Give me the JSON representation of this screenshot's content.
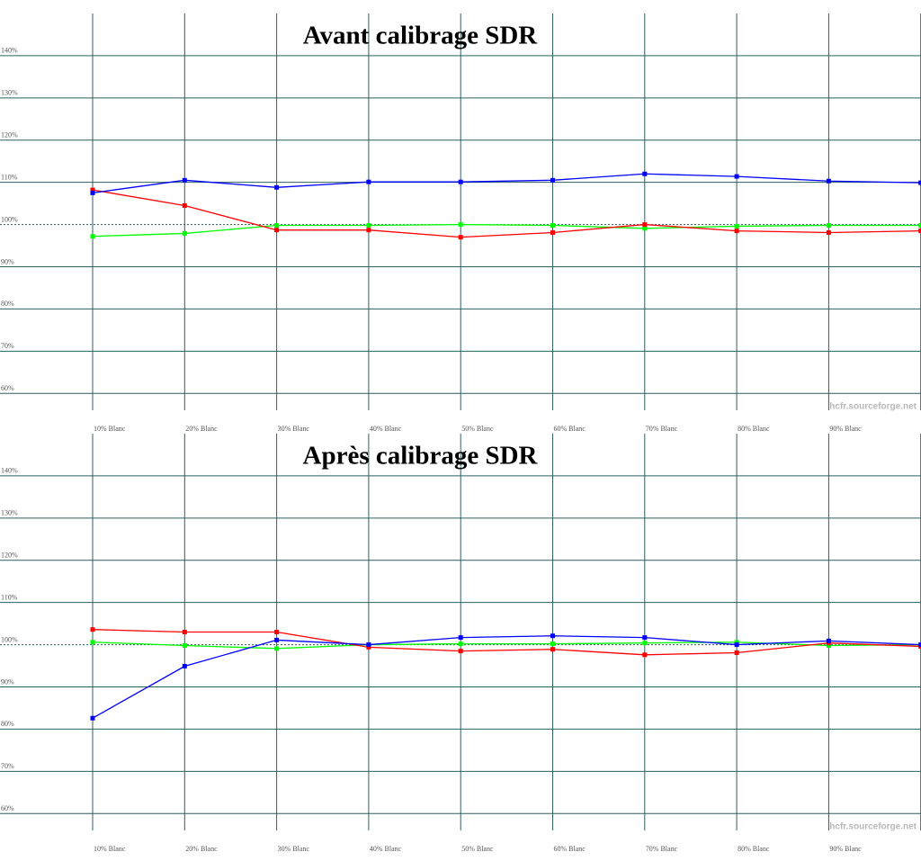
{
  "chart_data": [
    {
      "type": "line",
      "title": "Avant calibrage SDR",
      "watermark": "hcfr.sourceforge.net",
      "categories": [
        "10% Blanc",
        "20% Blanc",
        "30% Blanc",
        "40% Blanc",
        "50% Blanc",
        "60% Blanc",
        "70% Blanc",
        "80% Blanc",
        "90% Blanc",
        null
      ],
      "series": [
        {
          "color": "#00ff00",
          "values": [
            97.2,
            97.9,
            99.8,
            99.8,
            100,
            99.8,
            99.1,
            99.6,
            99.8,
            99.8
          ]
        },
        {
          "color": "#ff0000",
          "values": [
            108.2,
            104.5,
            98.7,
            98.7,
            97.0,
            98.1,
            100,
            98.5,
            98.1,
            98.5
          ]
        },
        {
          "color": "#0000ff",
          "values": [
            107.5,
            110.5,
            108.8,
            110.1,
            110.1,
            110.5,
            112.0,
            111.4,
            110.3,
            109.9
          ]
        }
      ],
      "ylim": [
        56,
        150
      ],
      "yticks": [
        {
          "value": 60,
          "label": "60%"
        },
        {
          "value": 70,
          "label": "70%"
        },
        {
          "value": 80,
          "label": "80%"
        },
        {
          "value": 90,
          "label": "90%"
        },
        {
          "value": 100,
          "label": "100%"
        },
        {
          "value": 110,
          "label": "110%"
        },
        {
          "value": 120,
          "label": "120%"
        },
        {
          "value": 130,
          "label": "130%"
        },
        {
          "value": 140,
          "label": "140%"
        }
      ],
      "reference_line": 100,
      "grid": true
    },
    {
      "type": "line",
      "title": "Après calibrage SDR",
      "watermark": "hcfr.sourceforge.net",
      "categories": [
        "10% Blanc",
        "20% Blanc",
        "30% Blanc",
        "40% Blanc",
        "50% Blanc",
        "60% Blanc",
        "70% Blanc",
        "80% Blanc",
        "90% Blanc",
        null
      ],
      "series": [
        {
          "color": "#00ff00",
          "values": [
            100.6,
            99.8,
            99.1,
            100,
            100.2,
            100.2,
            100.4,
            100.6,
            99.8,
            100
          ]
        },
        {
          "color": "#ff0000",
          "values": [
            103.6,
            103.0,
            103.0,
            99.4,
            98.5,
            98.9,
            97.6,
            98.1,
            100.4,
            99.6
          ]
        },
        {
          "color": "#0000ff",
          "values": [
            82.6,
            94.9,
            101.1,
            100,
            101.7,
            102.1,
            101.7,
            100,
            100.9,
            100
          ]
        }
      ],
      "ylim": [
        56,
        150
      ],
      "yticks": [
        {
          "value": 60,
          "label": "60%"
        },
        {
          "value": 70,
          "label": "70%"
        },
        {
          "value": 80,
          "label": "80%"
        },
        {
          "value": 90,
          "label": "90%"
        },
        {
          "value": 100,
          "label": "100%"
        },
        {
          "value": 110,
          "label": "110%"
        },
        {
          "value": 120,
          "label": "120%"
        },
        {
          "value": 130,
          "label": "130%"
        },
        {
          "value": 140,
          "label": "140%"
        }
      ],
      "reference_line": 100,
      "grid": true
    }
  ]
}
